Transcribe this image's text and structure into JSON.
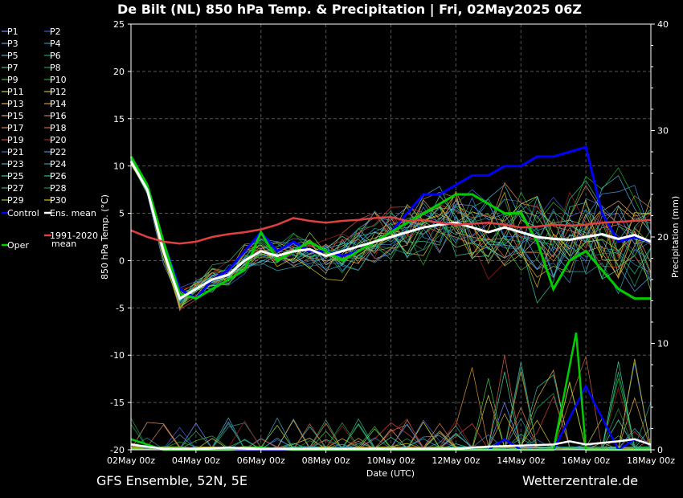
{
  "chart_data": {
    "type": "line",
    "title": "De Bilt  (NL)  850 hPa Temp. & Precipitation | Fri, 02May2025 06Z",
    "xlabel": "Date (UTC)",
    "ylabel_left": "850 hPa Temp. (°C)",
    "ylabel_right": "Precipitation (mm)",
    "ylim_left": [
      -20,
      25
    ],
    "ylim_right": [
      0,
      40
    ],
    "yticks_left": [
      "25",
      "20",
      "15",
      "10",
      "5",
      "0",
      "-5",
      "-10",
      "-15",
      "-20"
    ],
    "yticks_right": [
      "40",
      "30",
      "20",
      "10",
      "0"
    ],
    "xticks": [
      "02May 00z",
      "04May 00z",
      "06May 00z",
      "08May 00z",
      "10May 00z",
      "12May 00z",
      "14May 00z",
      "16May 00z",
      "18May 00z"
    ],
    "x_range_days": [
      0,
      16
    ],
    "grid": true,
    "legend_position": "left",
    "footer_left": "GFS Ensemble, 52N, 5E",
    "footer_right": "Wetterzentrale.de",
    "legend": [
      {
        "name": "P1",
        "color": "#6b8cff"
      },
      {
        "name": "P2",
        "color": "#3a5bd6"
      },
      {
        "name": "P3",
        "color": "#5aa0e0"
      },
      {
        "name": "P4",
        "color": "#2e8bc0"
      },
      {
        "name": "P5",
        "color": "#3fb6c8"
      },
      {
        "name": "P6",
        "color": "#20a080"
      },
      {
        "name": "P7",
        "color": "#2fc0a0"
      },
      {
        "name": "P8",
        "color": "#1aa050"
      },
      {
        "name": "P9",
        "color": "#40c040"
      },
      {
        "name": "P10",
        "color": "#22b022"
      },
      {
        "name": "P11",
        "color": "#c8d040"
      },
      {
        "name": "P12",
        "color": "#d0b030"
      },
      {
        "name": "P13",
        "color": "#e0b040"
      },
      {
        "name": "P14",
        "color": "#d89030"
      },
      {
        "name": "P15",
        "color": "#e0a070"
      },
      {
        "name": "P16",
        "color": "#c08050"
      },
      {
        "name": "P17",
        "color": "#e08050"
      },
      {
        "name": "P18",
        "color": "#d06040"
      },
      {
        "name": "P19",
        "color": "#d04040"
      },
      {
        "name": "P20",
        "color": "#a02020"
      },
      {
        "name": "P21",
        "color": "#4070d0"
      },
      {
        "name": "P22",
        "color": "#4090e0"
      },
      {
        "name": "P23",
        "color": "#40b0d0"
      },
      {
        "name": "P24",
        "color": "#30a0b0"
      },
      {
        "name": "P25",
        "color": "#40d0a0"
      },
      {
        "name": "P26",
        "color": "#20c080"
      },
      {
        "name": "P27",
        "color": "#40b070"
      },
      {
        "name": "P28",
        "color": "#209050"
      },
      {
        "name": "P29",
        "color": "#90d040"
      },
      {
        "name": "P30",
        "color": "#d0c020"
      },
      {
        "name": "Control",
        "color": "#0000ff"
      },
      {
        "name": "Ens. mean",
        "color": "#ffffff"
      },
      {
        "name": "Oper",
        "color": "#00cc00"
      },
      {
        "name": "1991-2020",
        "name2": "mean",
        "color": "#e04040"
      }
    ],
    "series_temp": [
      {
        "name": "Control",
        "color": "#0000ff",
        "x": [
          0,
          0.5,
          1,
          1.5,
          2,
          2.5,
          3,
          3.5,
          4,
          4.5,
          5,
          5.5,
          6,
          6.5,
          7,
          7.5,
          8,
          8.5,
          9,
          9.5,
          10,
          10.5,
          11,
          11.5,
          12,
          12.5,
          13,
          13.5,
          14,
          14.5,
          15,
          15.5,
          16
        ],
        "y": [
          10.5,
          8,
          2,
          -3,
          -4,
          -2,
          -1,
          1,
          3,
          1,
          2,
          1,
          1,
          0.5,
          1,
          2,
          3,
          5,
          7,
          7,
          8,
          9,
          9,
          10,
          10,
          11,
          11,
          11.5,
          12,
          5,
          2,
          2.5,
          2
        ]
      },
      {
        "name": "Oper",
        "color": "#00cc00",
        "x": [
          0,
          0.5,
          1,
          1.5,
          2,
          2.5,
          3,
          3.5,
          4,
          4.5,
          5,
          5.5,
          6,
          6.5,
          7,
          7.5,
          8,
          8.5,
          9,
          9.5,
          10,
          10.5,
          11,
          11.5,
          12,
          12.5,
          13,
          13.5,
          14,
          14.5,
          15,
          15.5,
          16
        ],
        "y": [
          11,
          8,
          2,
          -3.5,
          -4,
          -3,
          -2,
          -1,
          3,
          0,
          1,
          2,
          1,
          0,
          1,
          2,
          3,
          4,
          5,
          6,
          7,
          7,
          6,
          5,
          5,
          2,
          -3,
          0,
          1,
          -1,
          -3,
          -4,
          -4
        ]
      },
      {
        "name": "Ens. mean",
        "color": "#ffffff",
        "x": [
          0,
          0.5,
          1,
          1.5,
          2,
          2.5,
          3,
          3.5,
          4,
          4.5,
          5,
          5.5,
          6,
          6.5,
          7,
          7.5,
          8,
          8.5,
          9,
          9.5,
          10,
          10.5,
          11,
          11.5,
          12,
          12.5,
          13,
          13.5,
          14,
          14.5,
          15,
          15.5,
          16
        ],
        "y": [
          10.5,
          7.5,
          1,
          -4,
          -3,
          -2,
          -1.5,
          0,
          1,
          0.5,
          1,
          1.2,
          0.5,
          1,
          1.5,
          2,
          2.5,
          3,
          3.5,
          3.8,
          4,
          3.5,
          3,
          3.5,
          3,
          2.5,
          2.3,
          2.2,
          2.5,
          2.8,
          2.3,
          2.7,
          2
        ]
      },
      {
        "name": "1991-2020 mean",
        "color": "#e04040",
        "x": [
          0,
          0.5,
          1,
          1.5,
          2,
          2.5,
          3,
          3.5,
          4,
          4.5,
          5,
          5.5,
          6,
          6.5,
          7,
          7.5,
          8,
          8.5,
          9,
          9.5,
          10,
          10.5,
          11,
          11.5,
          12,
          12.5,
          13,
          13.5,
          14,
          14.5,
          15,
          15.5,
          16
        ],
        "y": [
          3.2,
          2.5,
          2,
          1.8,
          2,
          2.5,
          2.8,
          3,
          3.3,
          3.8,
          4.5,
          4.2,
          4,
          4.2,
          4.3,
          4.5,
          4.6,
          4.2,
          4.3,
          4,
          3.8,
          3.9,
          4,
          3.8,
          3.5,
          3.6,
          3.8,
          3.7,
          3.8,
          4,
          4.1,
          4.2,
          4.3
        ]
      }
    ],
    "series_precip": [
      {
        "name": "Control",
        "color": "#0000ff",
        "x": [
          0,
          1,
          2,
          3,
          4,
          5,
          6,
          7,
          8,
          9,
          10,
          11,
          11.5,
          12,
          13,
          13.5,
          14,
          15,
          15.5,
          16
        ],
        "y": [
          1,
          0,
          0,
          0,
          0,
          0,
          0,
          0,
          0,
          0,
          0,
          0,
          1,
          0,
          0,
          3,
          6,
          0,
          1,
          0.5
        ]
      },
      {
        "name": "Oper",
        "color": "#00cc00",
        "x": [
          0,
          1,
          2,
          3,
          4,
          5,
          6,
          7,
          8,
          9,
          10,
          11,
          12,
          13,
          13.7,
          14,
          15,
          16
        ],
        "y": [
          1,
          0,
          0,
          0,
          0.2,
          0,
          0,
          0,
          0,
          0,
          0,
          0,
          0,
          0,
          11,
          0,
          0,
          0
        ]
      },
      {
        "name": "Ens. mean",
        "color": "#ffffff",
        "x": [
          0,
          1,
          2,
          3,
          4,
          5,
          6,
          7,
          8,
          9,
          10,
          11,
          12,
          13,
          13.5,
          14,
          15,
          15.5,
          16
        ],
        "y": [
          0.5,
          0.1,
          0.1,
          0.2,
          0.1,
          0.1,
          0.1,
          0.1,
          0.1,
          0.1,
          0.1,
          0.3,
          0.4,
          0.5,
          0.8,
          0.5,
          0.8,
          1,
          0.5
        ]
      }
    ]
  }
}
